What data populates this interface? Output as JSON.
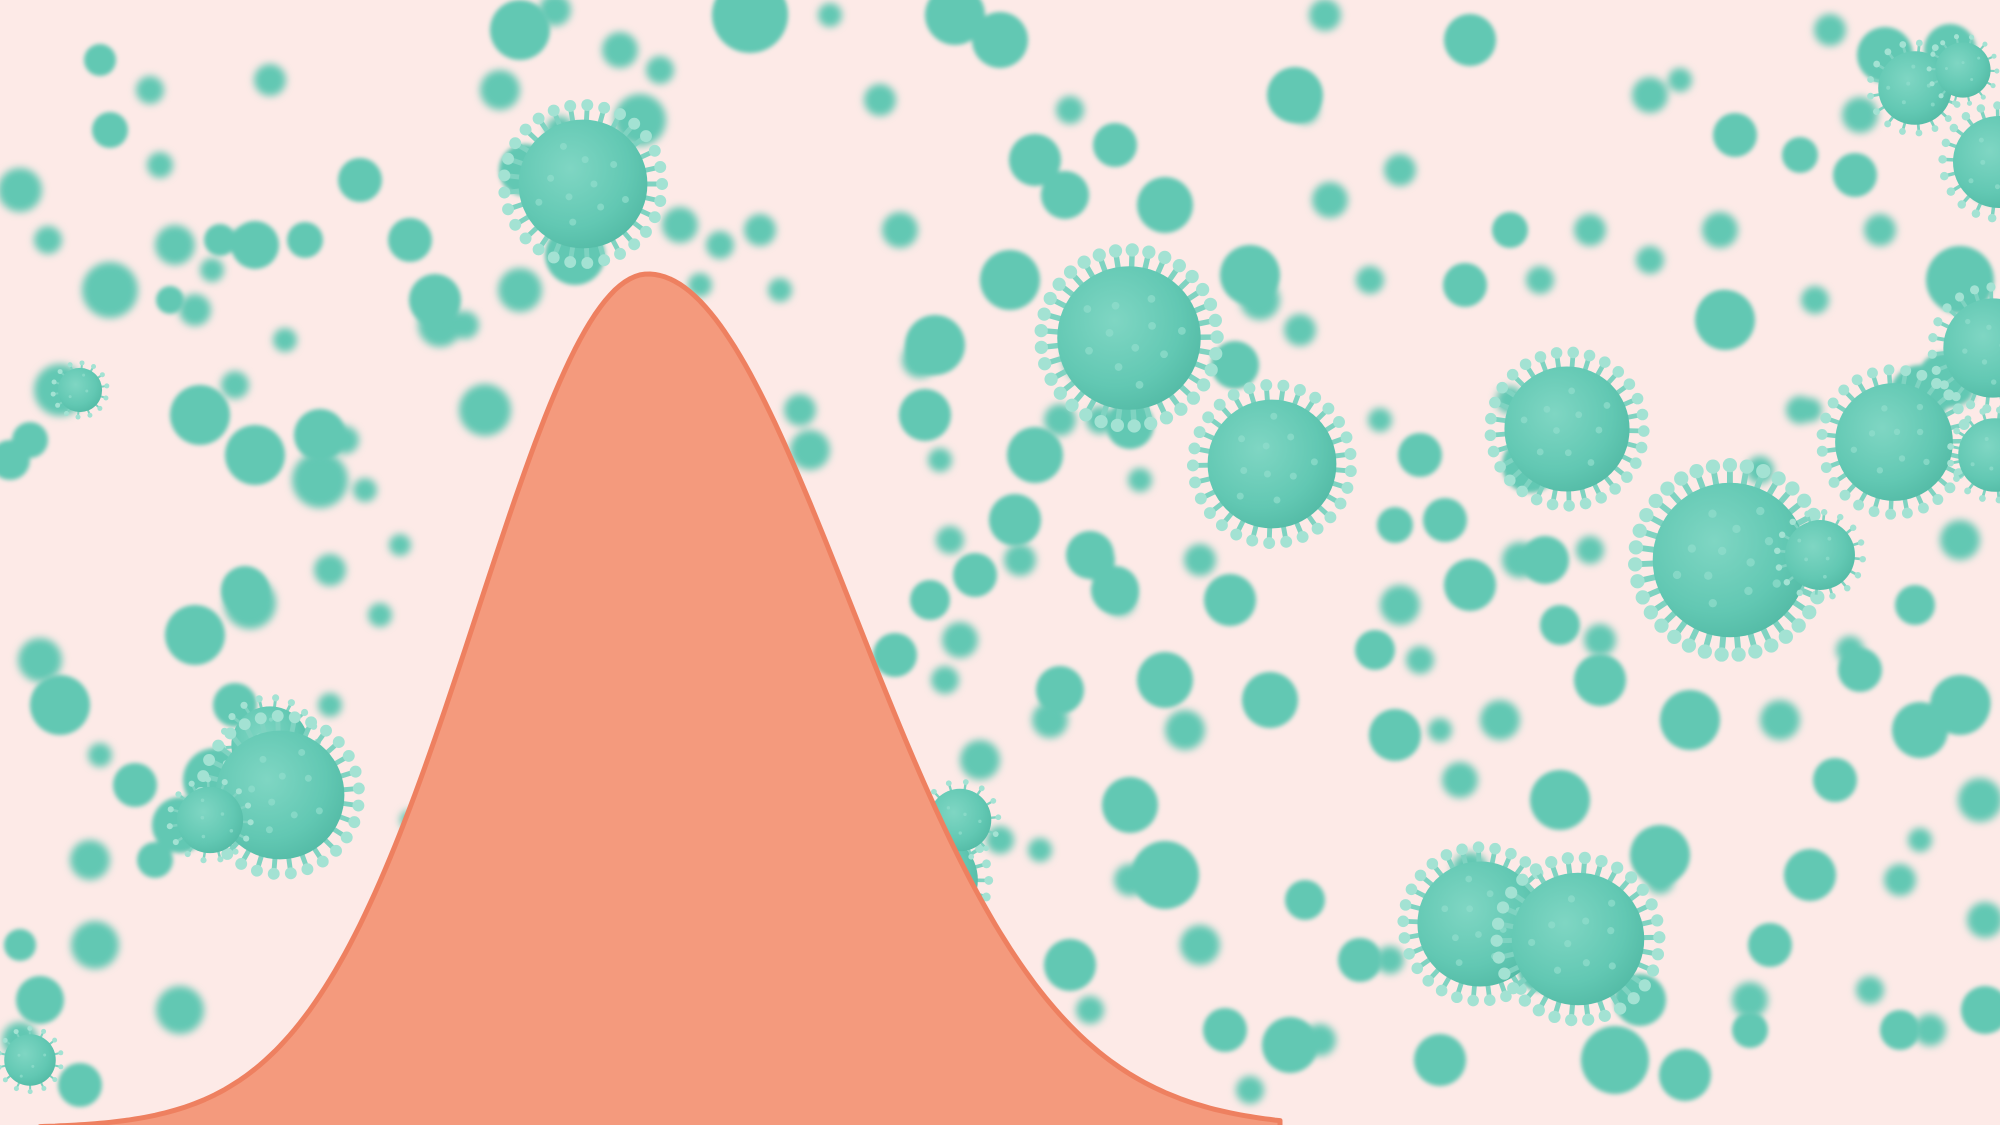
{
  "colors": {
    "background": "#fdeae7",
    "virus": "#62c8b3",
    "virus_highlight": "#8fdccb",
    "virus_spike": "#7fd3c1",
    "curve_fill": "#f49a7d",
    "curve_stroke": "#ee8060"
  },
  "icons": {
    "particle": "virus-particle-icon",
    "curve": "epidemic-curve"
  }
}
